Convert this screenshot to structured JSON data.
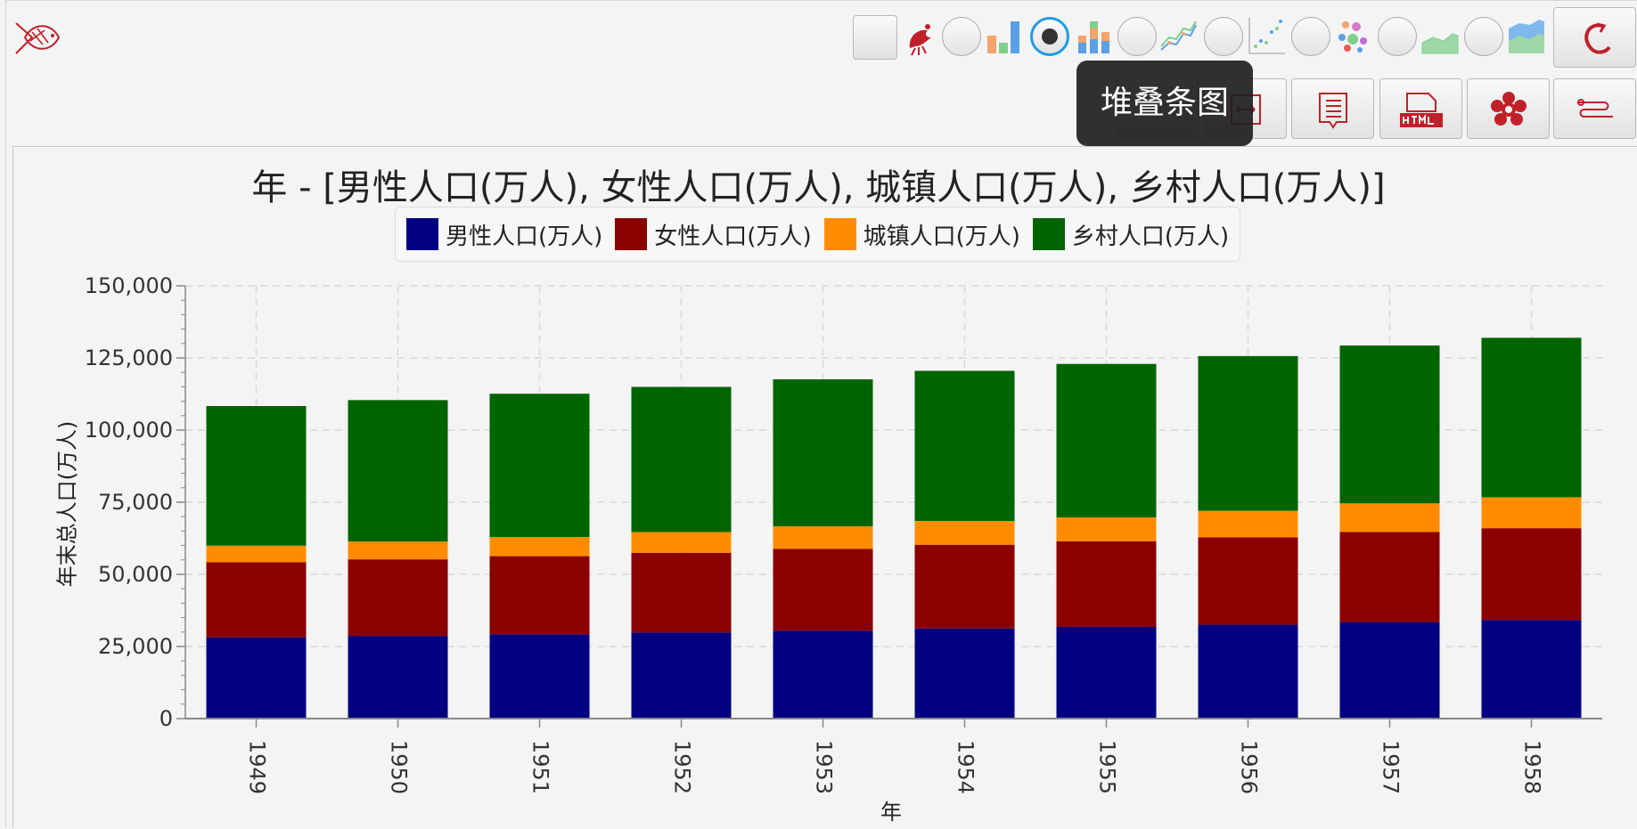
{
  "toolbar": {
    "tooltip": "堆叠条图",
    "selected_chart_type": "stacked-bar"
  },
  "chart_data": {
    "type": "bar",
    "stacked": true,
    "title": "年 - [男性人口(万人), 女性人口(万人), 城镇人口(万人), 乡村人口(万人)]",
    "xlabel": "年",
    "ylabel": "年末总人口(万人)",
    "ylim": [
      0,
      150000
    ],
    "yticks": [
      0,
      25000,
      50000,
      75000,
      100000,
      125000,
      150000
    ],
    "ytick_labels": [
      "0",
      "25,000",
      "50,000",
      "75,000",
      "100,000",
      "125,000",
      "150,000"
    ],
    "grid": true,
    "legend_position": "top",
    "categories": [
      "1949",
      "1950",
      "1951",
      "1952",
      "1953",
      "1954",
      "1955",
      "1956",
      "1957",
      "1958"
    ],
    "series": [
      {
        "name": "男性人口(万人)",
        "color": "#000080",
        "values": [
          28145,
          28669,
          29231,
          29833,
          30468,
          31242,
          31809,
          32536,
          33454,
          34195
        ]
      },
      {
        "name": "女性人口(万人)",
        "color": "#8b0000",
        "values": [
          26022,
          26527,
          27069,
          27649,
          28328,
          29024,
          29656,
          30292,
          31199,
          31799
        ]
      },
      {
        "name": "城镇人口(万人)",
        "color": "#ff8c00",
        "values": [
          5765,
          6169,
          6632,
          7163,
          7826,
          8249,
          8285,
          9185,
          9949,
          10721
        ]
      },
      {
        "name": "乡村人口(万人)",
        "color": "#006400",
        "values": [
          48402,
          49027,
          49668,
          50319,
          50970,
          52017,
          53180,
          53643,
          54704,
          55273
        ]
      }
    ]
  }
}
